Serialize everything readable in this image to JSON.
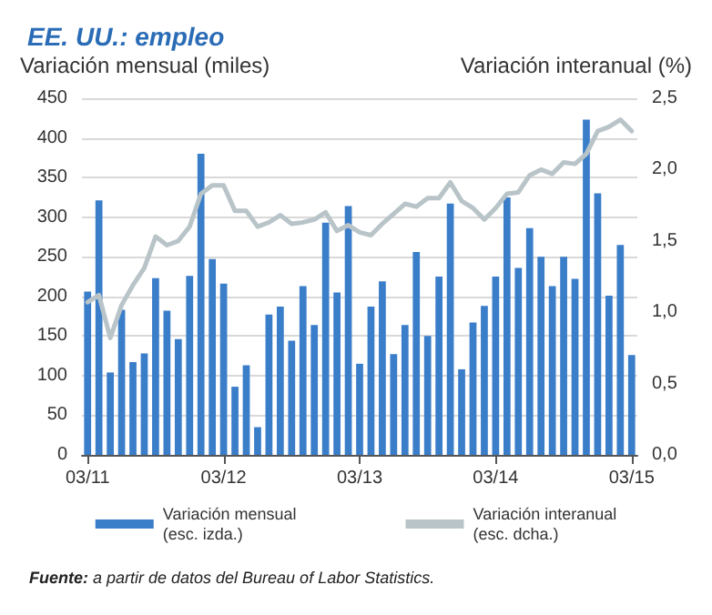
{
  "chart_data": {
    "type": "bar",
    "title": "EE. UU.: empleo",
    "ylabel": "Variación mensual (miles)",
    "y2label": "Variación interanual (%)",
    "categories": [
      "03/11",
      null,
      null,
      null,
      null,
      null,
      null,
      null,
      null,
      null,
      null,
      null,
      "03/12",
      null,
      null,
      null,
      null,
      null,
      null,
      null,
      null,
      null,
      null,
      null,
      "03/13",
      null,
      null,
      null,
      null,
      null,
      null,
      null,
      null,
      null,
      null,
      null,
      "03/14",
      null,
      null,
      null,
      null,
      null,
      null,
      null,
      null,
      null,
      null,
      null,
      "03/15"
    ],
    "series": [
      {
        "name": "Variación mensual\n(esc. izda.)",
        "color": "#3a7dc9",
        "values": [
          206,
          321,
          104,
          183,
          117,
          128,
          223,
          182,
          146,
          226,
          380,
          247,
          216,
          86,
          113,
          35,
          177,
          187,
          144,
          213,
          164,
          293,
          205,
          314,
          115,
          187,
          219,
          127,
          164,
          256,
          150,
          225,
          317,
          108,
          167,
          188,
          225,
          325,
          236,
          286,
          250,
          213,
          250,
          222,
          423,
          330,
          201,
          265,
          126
        ]
      },
      {
        "name": "Variación interanual\n(esc. dcha.)",
        "type": "line",
        "axis": "y2",
        "color": "#b8c4c8",
        "values": [
          1.07,
          1.12,
          0.82,
          1.05,
          1.19,
          1.31,
          1.53,
          1.47,
          1.5,
          1.6,
          1.83,
          1.89,
          1.89,
          1.71,
          1.71,
          1.6,
          1.63,
          1.68,
          1.62,
          1.63,
          1.65,
          1.7,
          1.57,
          1.61,
          1.56,
          1.54,
          1.62,
          1.69,
          1.76,
          1.74,
          1.8,
          1.8,
          1.91,
          1.78,
          1.73,
          1.65,
          1.73,
          1.83,
          1.84,
          1.96,
          2.0,
          1.97,
          2.05,
          2.04,
          2.11,
          2.27,
          2.3,
          2.35,
          2.27
        ]
      }
    ],
    "ylim": [
      0,
      450
    ],
    "yticks": [
      0,
      50,
      100,
      150,
      200,
      250,
      300,
      350,
      400,
      450
    ],
    "y2lim": [
      0,
      2.5
    ],
    "y2ticks": [
      {
        "value": 0,
        "label": "0,0"
      },
      {
        "value": 0.5,
        "label": "0,5"
      },
      {
        "value": 1,
        "label": "1,0"
      },
      {
        "value": 1.5,
        "label": "1,5"
      },
      {
        "value": 2,
        "label": "2,0"
      },
      {
        "value": 2.5,
        "label": "2,5"
      }
    ],
    "grid": "y",
    "legend": "bottom",
    "marker": "none",
    "line_style": "solid",
    "annotations": [
      "**Fuente:** a partir de datos del Bureau of Labor Statistics."
    ]
  }
}
